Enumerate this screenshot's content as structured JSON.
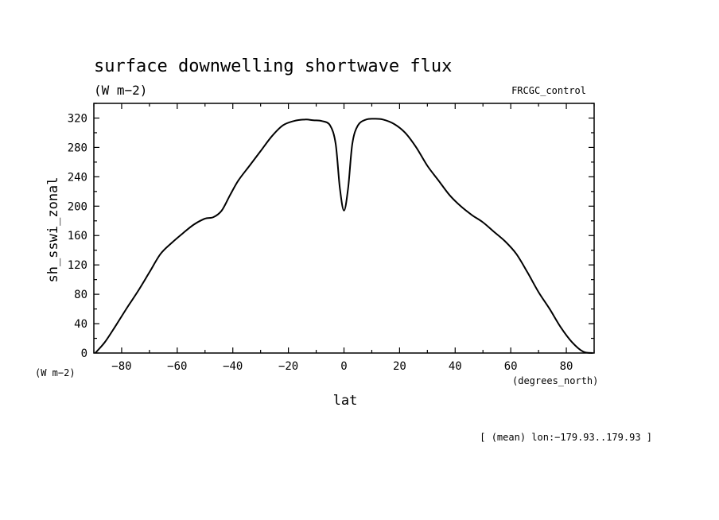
{
  "chart_data": {
    "type": "line",
    "title": "surface downwelling shortwave flux",
    "units": "(W m−2)",
    "experiment": "FRCGC_control",
    "xlabel": "lat",
    "xunits": "(degrees_north)",
    "ylabel": "sh_sswi_zonal",
    "yunits": "(W m−2)",
    "footnote": "[ (mean) lon:−179.93..179.93 ]",
    "xlim": [
      -90,
      90
    ],
    "ylim": [
      0,
      340
    ],
    "xticks": [
      -80,
      -60,
      -40,
      -20,
      0,
      20,
      40,
      60,
      80
    ],
    "xtick_labels": [
      "−80",
      "−60",
      "−40",
      "−20",
      "0",
      "20",
      "40",
      "60",
      "80"
    ],
    "yticks": [
      0,
      40,
      80,
      120,
      160,
      200,
      240,
      280,
      320
    ],
    "ytick_labels": [
      "0",
      "40",
      "80",
      "120",
      "160",
      "200",
      "240",
      "280",
      "320"
    ],
    "grid": false,
    "series": [
      {
        "x": [
          -89.5,
          -86,
          -82,
          -78,
          -74,
          -70,
          -66,
          -62,
          -58,
          -54,
          -50,
          -47,
          -44,
          -41,
          -38,
          -34,
          -30,
          -26,
          -22,
          -18,
          -14,
          -11,
          -8,
          -5,
          -3,
          -1.5,
          0,
          1.5,
          3,
          5,
          8,
          11,
          14,
          18,
          22,
          26,
          30,
          34,
          38,
          42,
          46,
          50,
          54,
          58,
          62,
          66,
          70,
          74,
          78,
          82,
          86,
          89.5
        ],
        "y": [
          0,
          15,
          38,
          62,
          85,
          110,
          135,
          150,
          163,
          175,
          183,
          185,
          194,
          215,
          235,
          255,
          275,
          295,
          310,
          316,
          318,
          317,
          316,
          310,
          285,
          225,
          194,
          225,
          285,
          310,
          318,
          319,
          318,
          312,
          300,
          280,
          255,
          235,
          215,
          200,
          188,
          178,
          165,
          152,
          135,
          110,
          83,
          60,
          35,
          15,
          2,
          0
        ]
      }
    ]
  }
}
